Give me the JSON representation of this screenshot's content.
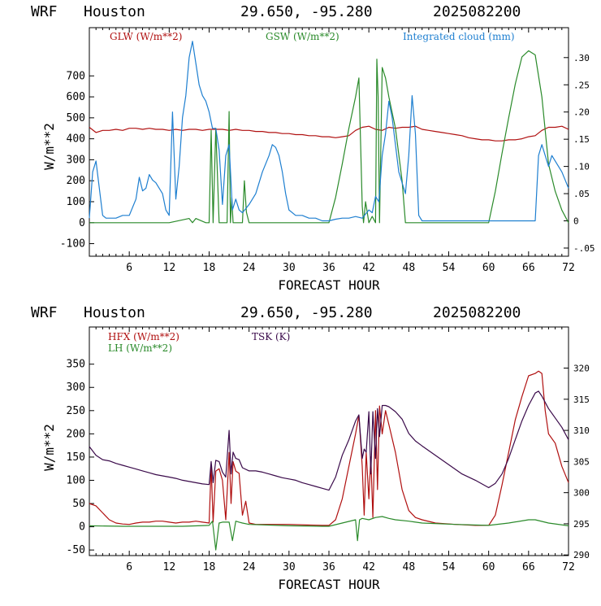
{
  "colors": {
    "red": "#b01010",
    "green": "#2a8a2a",
    "blue": "#1e7fd0",
    "purple": "#3a0a4a"
  },
  "charts": [
    {
      "header": {
        "model": "WRF",
        "city": "Houston",
        "coords": "29.650, -95.280",
        "run": "2025082200"
      },
      "xlabel": "FORECAST HOUR",
      "ylabel": "W/m**2",
      "xticks": [
        "6",
        "12",
        "18",
        "24",
        "30",
        "36",
        "42",
        "48",
        "54",
        "60",
        "66",
        "72"
      ],
      "yticks": [
        "-100",
        "0",
        "100",
        "200",
        "300",
        "400",
        "500",
        "600",
        "700"
      ],
      "rticks": [
        "-.05",
        "0",
        ".05",
        ".10",
        ".15",
        ".20",
        ".25",
        ".30"
      ],
      "legend": {
        "glw": "GLW (W/m**2)",
        "gsw": "GSW (W/m**2)",
        "cloud": "Integrated cloud (mm)"
      }
    },
    {
      "header": {
        "model": "WRF",
        "city": "Houston",
        "coords": "29.650, -95.280",
        "run": "2025082200"
      },
      "xlabel": "FORECAST HOUR",
      "ylabel": "W/m**2",
      "xticks": [
        "6",
        "12",
        "18",
        "24",
        "30",
        "36",
        "42",
        "48",
        "54",
        "60",
        "66",
        "72"
      ],
      "yticks": [
        "-50",
        "0",
        "50",
        "100",
        "150",
        "200",
        "250",
        "300",
        "350"
      ],
      "rticks": [
        "290",
        "295",
        "300",
        "305",
        "310",
        "315",
        "320"
      ],
      "legend": {
        "hfx": "HFX (W/m**2)",
        "lh": "LH (W/m**2)",
        "tsk": "TSK (K)"
      }
    }
  ],
  "chart_data": [
    {
      "type": "line",
      "x_range": [
        0,
        72
      ],
      "ylim": [
        -160,
        930
      ],
      "y2lim": [
        -0.065,
        0.355
      ],
      "series": [
        {
          "name": "GLW (W/m**2)",
          "axis": "left",
          "color": "#b01010",
          "x": [
            0,
            1,
            2,
            3,
            4,
            5,
            6,
            7,
            8,
            9,
            10,
            11,
            12,
            13,
            14,
            15,
            16,
            17,
            18,
            19,
            20,
            21,
            22,
            23,
            24,
            25,
            26,
            27,
            28,
            29,
            30,
            31,
            32,
            33,
            34,
            35,
            36,
            37,
            38,
            39,
            40,
            41,
            42,
            43,
            44,
            45,
            46,
            47,
            48,
            49,
            50,
            51,
            52,
            53,
            54,
            55,
            56,
            57,
            58,
            59,
            60,
            61,
            62,
            63,
            64,
            65,
            66,
            67,
            68,
            69,
            70,
            71,
            72
          ],
          "y": [
            455,
            430,
            440,
            440,
            445,
            440,
            450,
            450,
            445,
            450,
            445,
            445,
            440,
            445,
            440,
            445,
            445,
            440,
            445,
            445,
            445,
            440,
            445,
            440,
            440,
            435,
            435,
            430,
            430,
            425,
            425,
            420,
            420,
            415,
            415,
            410,
            410,
            405,
            410,
            415,
            440,
            455,
            460,
            445,
            440,
            455,
            450,
            455,
            455,
            460,
            445,
            440,
            435,
            430,
            425,
            420,
            415,
            405,
            400,
            395,
            395,
            390,
            390,
            395,
            395,
            400,
            410,
            415,
            440,
            455,
            455,
            460,
            445
          ]
        },
        {
          "name": "GSW (W/m**2)",
          "axis": "left",
          "color": "#2a8a2a",
          "x": [
            0,
            12,
            15,
            15.5,
            16,
            17.5,
            18,
            18.3,
            18.6,
            19,
            19.5,
            20,
            20.7,
            21,
            21.2,
            21.4,
            21.6,
            22,
            23,
            23.3,
            23.6,
            24,
            36,
            37,
            38,
            39,
            40,
            40.5,
            41,
            41.2,
            41.5,
            42,
            42.5,
            43,
            43.2,
            43.4,
            43.6,
            44,
            44.5,
            45,
            46,
            47,
            47.5,
            48,
            60,
            61,
            62,
            63,
            64,
            65,
            66,
            67,
            68,
            69,
            70,
            71,
            72
          ],
          "y": [
            0,
            0,
            20,
            0,
            20,
            0,
            0,
            440,
            0,
            450,
            0,
            0,
            0,
            530,
            0,
            120,
            0,
            0,
            0,
            200,
            50,
            0,
            0,
            120,
            280,
            450,
            600,
            690,
            80,
            0,
            100,
            0,
            30,
            0,
            780,
            600,
            0,
            740,
            690,
            600,
            450,
            200,
            0,
            0,
            0,
            150,
            330,
            500,
            660,
            790,
            820,
            800,
            600,
            280,
            150,
            60,
            0
          ]
        },
        {
          "name": "Integrated cloud (mm)",
          "axis": "right",
          "color": "#1e7fd0",
          "x": [
            0,
            0.5,
            1,
            1.5,
            2,
            2.5,
            3,
            4,
            5,
            6,
            7,
            7.5,
            8,
            8.5,
            9,
            9.5,
            10,
            11,
            11.5,
            12,
            12.5,
            13,
            13.5,
            14,
            14.5,
            15,
            15.5,
            16,
            16.5,
            17,
            17.5,
            18,
            18.5,
            19,
            19.5,
            20,
            20.5,
            21,
            21.5,
            22,
            22.5,
            23,
            24,
            25,
            26,
            27,
            27.5,
            28,
            28.5,
            29,
            29.5,
            30,
            31,
            32,
            33,
            34,
            35,
            36,
            37,
            38,
            39,
            40,
            41,
            42,
            42.5,
            43,
            43.5,
            44,
            44.5,
            45,
            45.5,
            46,
            46.5,
            47,
            47.5,
            48,
            48.5,
            49,
            49.5,
            50,
            55,
            60,
            65,
            66,
            67,
            67.5,
            68,
            68.5,
            69,
            69.5,
            70,
            71,
            72
          ],
          "y": [
            0.005,
            0.09,
            0.11,
            0.06,
            0.01,
            0.005,
            0.005,
            0.005,
            0.01,
            0.01,
            0.04,
            0.08,
            0.055,
            0.06,
            0.085,
            0.075,
            0.07,
            0.05,
            0.02,
            0.01,
            0.2,
            0.04,
            0.1,
            0.19,
            0.23,
            0.3,
            0.33,
            0.29,
            0.25,
            0.23,
            0.22,
            0.2,
            0.17,
            0.17,
            0.13,
            0.03,
            0.12,
            0.14,
            0.02,
            0.04,
            0.02,
            0.015,
            0.03,
            0.05,
            0.09,
            0.12,
            0.14,
            0.135,
            0.12,
            0.09,
            0.05,
            0.02,
            0.01,
            0.01,
            0.005,
            0.005,
            0.0,
            0.0,
            0.003,
            0.005,
            0.005,
            0.008,
            0.005,
            0.02,
            0.015,
            0.045,
            0.035,
            0.12,
            0.16,
            0.22,
            0.19,
            0.14,
            0.09,
            0.07,
            0.05,
            0.12,
            0.23,
            0.16,
            0.01,
            0.0,
            0.0,
            0.0,
            0.0,
            0.0,
            0.0,
            0.12,
            0.14,
            0.12,
            0.1,
            0.12,
            0.11,
            0.09,
            0.06
          ]
        }
      ]
    },
    {
      "type": "line",
      "x_range": [
        0,
        72
      ],
      "ylim": [
        -62,
        430
      ],
      "y2lim": [
        289.9,
        326.6
      ],
      "series": [
        {
          "name": "HFX (W/m**2)",
          "axis": "left",
          "color": "#b01010",
          "x": [
            0,
            1,
            2,
            3,
            4,
            5,
            6,
            7,
            8,
            9,
            10,
            11,
            12,
            13,
            14,
            15,
            16,
            17,
            18,
            18.3,
            18.6,
            19,
            19.5,
            20,
            20.5,
            21,
            21.3,
            21.6,
            22,
            22.5,
            23,
            23.5,
            24,
            25,
            30,
            35,
            36,
            37,
            38,
            39,
            40,
            40.5,
            41,
            41.3,
            41.6,
            42,
            42.3,
            42.6,
            43,
            43.3,
            43.6,
            44,
            44.5,
            45,
            46,
            47,
            48,
            49,
            50,
            52,
            55,
            58,
            60,
            61,
            62,
            63,
            64,
            65,
            66,
            67,
            67.5,
            68,
            68.5,
            69,
            70,
            71,
            72
          ],
          "y": [
            50,
            45,
            30,
            15,
            8,
            6,
            5,
            8,
            10,
            10,
            12,
            12,
            10,
            8,
            10,
            10,
            12,
            10,
            8,
            130,
            10,
            120,
            125,
            100,
            15,
            160,
            50,
            140,
            120,
            115,
            25,
            55,
            8,
            5,
            5,
            3,
            3,
            15,
            60,
            130,
            200,
            240,
            130,
            25,
            160,
            60,
            150,
            20,
            250,
            80,
            260,
            200,
            250,
            220,
            160,
            80,
            35,
            20,
            15,
            8,
            5,
            3,
            3,
            25,
            90,
            160,
            230,
            280,
            325,
            330,
            335,
            330,
            250,
            200,
            180,
            130,
            95
          ]
        },
        {
          "name": "LH (W/m**2)",
          "axis": "left",
          "color": "#2a8a2a",
          "x": [
            0,
            5,
            10,
            14,
            18,
            18.5,
            19,
            19.5,
            20,
            21,
            21.5,
            22,
            22.5,
            23,
            24,
            30,
            35,
            36,
            38,
            40,
            40.3,
            40.6,
            41,
            42,
            43,
            44,
            45,
            46,
            48,
            50,
            55,
            60,
            63,
            66,
            67,
            69,
            72
          ],
          "y": [
            2,
            1,
            1,
            1,
            3,
            12,
            -50,
            8,
            10,
            10,
            -30,
            12,
            10,
            8,
            5,
            2,
            1,
            1,
            8,
            15,
            -30,
            15,
            18,
            15,
            20,
            22,
            18,
            15,
            12,
            8,
            5,
            3,
            8,
            15,
            15,
            8,
            2
          ]
        },
        {
          "name": "TSK (K)",
          "axis": "right",
          "color": "#3a0a4a",
          "x": [
            0,
            1,
            2,
            3,
            4,
            5,
            6,
            7,
            8,
            9,
            10,
            11,
            12,
            13,
            14,
            15,
            16,
            17,
            18,
            18.3,
            18.6,
            19,
            19.5,
            20,
            20.5,
            21,
            21.3,
            21.6,
            22,
            22.5,
            23,
            24,
            25,
            26,
            27,
            28,
            29,
            30,
            31,
            32,
            33,
            34,
            35,
            36,
            37,
            38,
            39,
            40,
            40.5,
            41,
            41.3,
            41.6,
            42,
            42.3,
            42.6,
            43,
            43.3,
            43.6,
            44,
            44.5,
            45,
            46,
            47,
            48,
            49,
            50,
            52,
            54,
            56,
            58,
            60,
            61,
            62,
            63,
            64,
            65,
            66,
            67,
            67.5,
            68,
            69,
            70,
            71,
            72
          ],
          "y": [
            307.4,
            306,
            305.3,
            305.1,
            304.7,
            304.4,
            304.1,
            303.8,
            303.5,
            303.2,
            302.9,
            302.7,
            302.5,
            302.3,
            302,
            301.8,
            301.6,
            301.4,
            301.3,
            305,
            301.6,
            305.2,
            305,
            303.3,
            302.5,
            310,
            303,
            306.5,
            305.5,
            305.3,
            304,
            303.5,
            303.5,
            303.3,
            303,
            302.7,
            302.4,
            302.2,
            302,
            301.6,
            301.3,
            301,
            300.7,
            300.4,
            302.5,
            306,
            308.5,
            311.5,
            312.5,
            305.5,
            307,
            306.5,
            313,
            303,
            313,
            305.5,
            313.5,
            309,
            314,
            314,
            313.8,
            313,
            311.8,
            309.5,
            308.3,
            307.5,
            306,
            304.5,
            303,
            302,
            300.8,
            301.5,
            303,
            305.5,
            308.5,
            311.5,
            314,
            316,
            316.3,
            315.5,
            313.5,
            312,
            310.5,
            308.5
          ]
        }
      ]
    }
  ]
}
